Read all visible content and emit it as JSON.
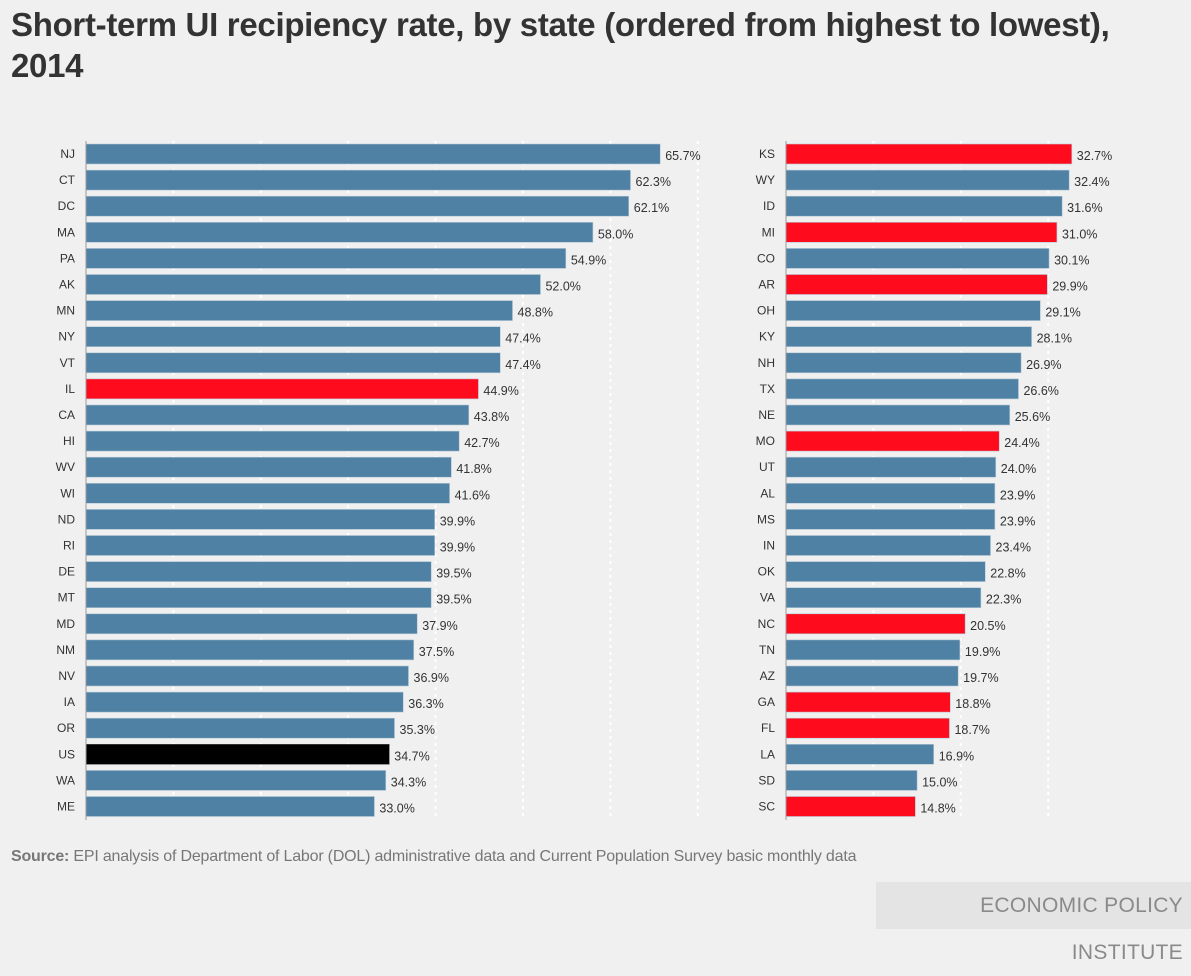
{
  "chart_data": {
    "type": "bar",
    "orientation": "horizontal",
    "title": "Short-term UI recipiency rate, by state (ordered from highest to lowest), 2014",
    "xlabel": "",
    "ylabel": "",
    "xlim": [
      0,
      70
    ],
    "grid": true,
    "value_suffix": "%",
    "colors": {
      "default": "#4e81a3",
      "highlight": "#ff0b1e",
      "national": "#000000"
    },
    "panels": [
      {
        "name": "left",
        "categories": [
          "NJ",
          "CT",
          "DC",
          "MA",
          "PA",
          "AK",
          "MN",
          "NY",
          "VT",
          "IL",
          "CA",
          "HI",
          "WV",
          "WI",
          "ND",
          "RI",
          "DE",
          "MT",
          "MD",
          "NM",
          "NV",
          "IA",
          "OR",
          "US",
          "WA",
          "ME"
        ],
        "values": [
          65.7,
          62.3,
          62.1,
          58.0,
          54.9,
          52.0,
          48.8,
          47.4,
          47.4,
          44.9,
          43.8,
          42.7,
          41.8,
          41.6,
          39.9,
          39.9,
          39.5,
          39.5,
          37.9,
          37.5,
          36.9,
          36.3,
          35.3,
          34.7,
          34.3,
          33.0
        ],
        "labels": [
          "65.7%",
          "62.3%",
          "62.1%",
          "58.0%",
          "54.9%",
          "52.0%",
          "48.8%",
          "47.4%",
          "47.4%",
          "44.9%",
          "43.8%",
          "42.7%",
          "41.8%",
          "41.6%",
          "39.9%",
          "39.9%",
          "39.5%",
          "39.5%",
          "37.9%",
          "37.5%",
          "36.9%",
          "36.3%",
          "35.3%",
          "34.7%",
          "34.3%",
          "33.0%"
        ],
        "highlight": [
          "default",
          "default",
          "default",
          "default",
          "default",
          "default",
          "default",
          "default",
          "default",
          "highlight",
          "default",
          "default",
          "default",
          "default",
          "default",
          "default",
          "default",
          "default",
          "default",
          "default",
          "default",
          "default",
          "default",
          "national",
          "default",
          "default"
        ]
      },
      {
        "name": "right",
        "categories": [
          "KS",
          "WY",
          "ID",
          "MI",
          "CO",
          "AR",
          "OH",
          "KY",
          "NH",
          "TX",
          "NE",
          "MO",
          "UT",
          "AL",
          "MS",
          "IN",
          "OK",
          "VA",
          "NC",
          "TN",
          "AZ",
          "GA",
          "FL",
          "LA",
          "SD",
          "SC"
        ],
        "values": [
          32.7,
          32.4,
          31.6,
          31.0,
          30.1,
          29.9,
          29.1,
          28.1,
          26.9,
          26.6,
          25.6,
          24.4,
          24.0,
          23.9,
          23.9,
          23.4,
          22.8,
          22.3,
          20.5,
          19.9,
          19.7,
          18.8,
          18.7,
          16.9,
          15.0,
          14.8
        ],
        "labels": [
          "32.7%",
          "32.4%",
          "31.6%",
          "31.0%",
          "30.1%",
          "29.9%",
          "29.1%",
          "28.1%",
          "26.9%",
          "26.6%",
          "25.6%",
          "24.4%",
          "24.0%",
          "23.9%",
          "23.9%",
          "23.4%",
          "22.8%",
          "22.3%",
          "20.5%",
          "19.9%",
          "19.7%",
          "18.8%",
          "18.7%",
          "16.9%",
          "15.0%",
          "14.8%"
        ],
        "highlight": [
          "highlight",
          "default",
          "default",
          "highlight",
          "default",
          "highlight",
          "default",
          "default",
          "default",
          "default",
          "default",
          "highlight",
          "default",
          "default",
          "default",
          "default",
          "default",
          "default",
          "highlight",
          "default",
          "default",
          "highlight",
          "highlight",
          "default",
          "default",
          "highlight"
        ]
      }
    ]
  },
  "header": {
    "title": "Short-term UI recipiency rate, by state (ordered from highest to lowest), 2014"
  },
  "footer": {
    "source_label": "Source:",
    "source_text": " EPI analysis of Department of Labor (DOL) administrative data and Current Population Survey basic monthly data",
    "brand": "ECONOMIC POLICY INSTITUTE"
  }
}
